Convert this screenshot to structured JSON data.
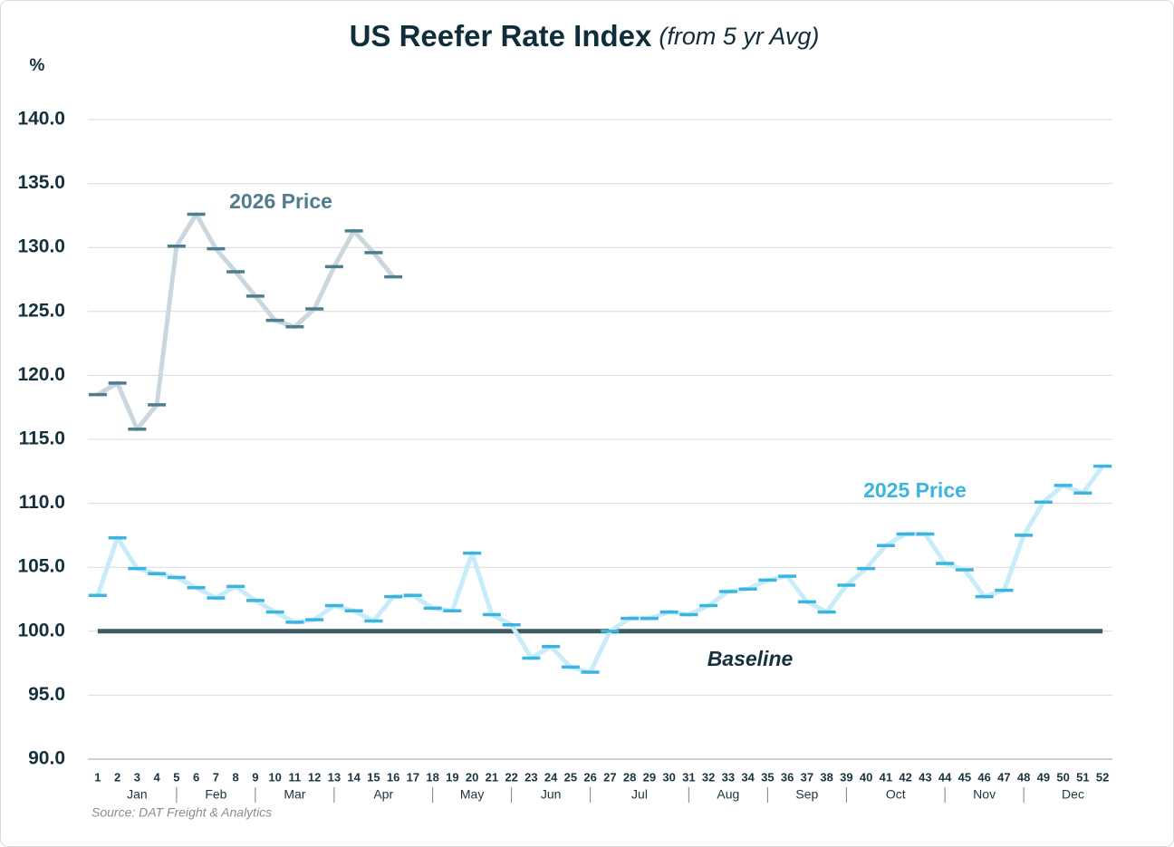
{
  "chart_data": {
    "type": "line",
    "title": "US Reefer Rate Index",
    "subtitle": "(from 5 yr Avg)",
    "y_label": "%",
    "source": "Source:  DAT Freight & Analytics",
    "x": [
      1,
      2,
      3,
      4,
      5,
      6,
      7,
      8,
      9,
      10,
      11,
      12,
      13,
      14,
      15,
      16,
      17,
      18,
      19,
      20,
      21,
      22,
      23,
      24,
      25,
      26,
      27,
      28,
      29,
      30,
      31,
      32,
      33,
      34,
      35,
      36,
      37,
      38,
      39,
      40,
      41,
      42,
      43,
      44,
      45,
      46,
      47,
      48,
      49,
      50,
      51,
      52
    ],
    "xlim": [
      0.5,
      52.5
    ],
    "x_groups": [
      {
        "label": "Jan",
        "span": 4
      },
      {
        "label": "Feb",
        "span": 4
      },
      {
        "label": "Mar",
        "span": 4
      },
      {
        "label": "Apr",
        "span": 5
      },
      {
        "label": "May",
        "span": 4
      },
      {
        "label": "Jun",
        "span": 4
      },
      {
        "label": "Jul",
        "span": 5
      },
      {
        "label": "Aug",
        "span": 4
      },
      {
        "label": "Sep",
        "span": 4
      },
      {
        "label": "Oct",
        "span": 5
      },
      {
        "label": "Nov",
        "span": 4
      },
      {
        "label": "Dec",
        "span": 5
      }
    ],
    "ylim": [
      90,
      140
    ],
    "yticks": [
      {
        "value": 90,
        "label": "90.0"
      },
      {
        "value": 95,
        "label": "95.0"
      },
      {
        "value": 100,
        "label": "100.0"
      },
      {
        "value": 105,
        "label": "105.0"
      },
      {
        "value": 110,
        "label": "110.0"
      },
      {
        "value": 115,
        "label": "115.0"
      },
      {
        "value": 120,
        "label": "120.0"
      },
      {
        "value": 125,
        "label": "125.0"
      },
      {
        "value": 130,
        "label": "130.0"
      },
      {
        "value": 135,
        "label": "135.0"
      },
      {
        "value": 140,
        "label": "140.0"
      }
    ],
    "grid": true,
    "series": [
      {
        "name": "2026 Price",
        "color": "#4e7d8e",
        "line_color": "#cad7df",
        "values": [
          118.5,
          119.4,
          115.8,
          117.7,
          130.1,
          132.6,
          129.9,
          128.1,
          126.2,
          124.3,
          123.8,
          125.2,
          128.5,
          131.3,
          129.6,
          127.7,
          null,
          null,
          null,
          null,
          null,
          null,
          null,
          null,
          null,
          null,
          null,
          null,
          null,
          null,
          null,
          null,
          null,
          null,
          null,
          null,
          null,
          null,
          null,
          null,
          null,
          null,
          null,
          null,
          null,
          null,
          null,
          null,
          null,
          null,
          null,
          null
        ]
      },
      {
        "name": "2025 Price",
        "color": "#3bb5e0",
        "line_color": "#c8ecf9",
        "values": [
          102.8,
          107.3,
          104.9,
          104.5,
          104.2,
          103.4,
          102.6,
          103.5,
          102.4,
          101.5,
          100.7,
          100.9,
          102.0,
          101.6,
          100.8,
          102.7,
          102.8,
          101.8,
          101.6,
          106.1,
          101.3,
          100.5,
          97.9,
          98.8,
          97.2,
          96.8,
          100.0,
          101.0,
          101.0,
          101.5,
          101.3,
          102.0,
          103.1,
          103.3,
          104.0,
          104.3,
          102.3,
          101.5,
          103.6,
          104.9,
          106.7,
          107.6,
          107.6,
          105.3,
          104.8,
          102.7,
          103.2,
          107.5,
          110.1,
          111.4,
          110.8,
          112.9
        ]
      }
    ],
    "reference_line": {
      "value": 100,
      "label": "Baseline",
      "color": "#3e5a64"
    }
  }
}
